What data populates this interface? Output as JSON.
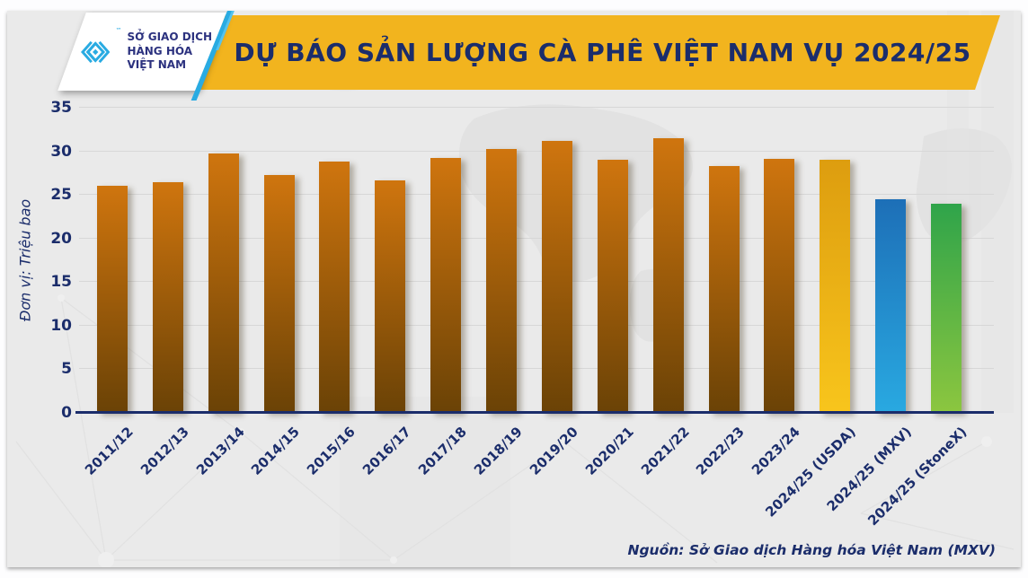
{
  "logo": {
    "line1": "SỞ GIAO DỊCH",
    "line2": "HÀNG HÓA",
    "line3": "VIỆT NAM",
    "trademark": "™",
    "mark_icon": "mxv-diamond-logomark"
  },
  "header": {
    "title": "DỰ BÁO SẢN LƯỢNG CÀ PHÊ VIỆT NAM VỤ 2024/25"
  },
  "chart_data": {
    "type": "bar",
    "title": "DỰ BÁO SẢN LƯỢNG CÀ PHÊ VIỆT NAM VỤ 2024/25",
    "xlabel": "",
    "ylabel": "Đơn vị: Triệu bao",
    "ylim": [
      0,
      35
    ],
    "yticks": [
      0,
      5,
      10,
      15,
      20,
      25,
      30,
      35
    ],
    "grid": true,
    "legend": "none",
    "categories": [
      "2011/12",
      "2012/13",
      "2013/14",
      "2014/15",
      "2015/16",
      "2016/17",
      "2017/18",
      "2018/19",
      "2019/20",
      "2020/21",
      "2021/22",
      "2022/23",
      "2023/24",
      "2024/25 (USDA)",
      "2024/25 (MXV)",
      "2024/25 (StoneX)"
    ],
    "values": [
      26,
      26.5,
      29.8,
      27.3,
      28.8,
      26.7,
      29.2,
      30.3,
      31.2,
      29,
      31.5,
      28.3,
      29.1,
      29,
      24.5,
      24
    ],
    "bar_styles": [
      "coffee",
      "coffee",
      "coffee",
      "coffee",
      "coffee",
      "coffee",
      "coffee",
      "coffee",
      "coffee",
      "coffee",
      "coffee",
      "coffee",
      "coffee",
      "usda",
      "mxv",
      "stonex"
    ],
    "style_colors": {
      "coffee": {
        "top": "#cf750e",
        "bottom": "#6a4206"
      },
      "usda": {
        "top": "#dd9d0f",
        "bottom": "#f8c51c"
      },
      "mxv": {
        "top": "#1d6fb7",
        "bottom": "#29a9e1"
      },
      "stonex": {
        "top": "#2fa44a",
        "bottom": "#8cc63f"
      }
    }
  },
  "footer": {
    "source": "Nguồn: Sở Giao dịch Hàng hóa Việt Nam (MXV)"
  },
  "theme": {
    "navy": "#1b2d6b",
    "gold": "#f2b41e",
    "cyan": "#29abe2",
    "card_background": "#eaeaea",
    "gridline": "#d7d7d7"
  }
}
